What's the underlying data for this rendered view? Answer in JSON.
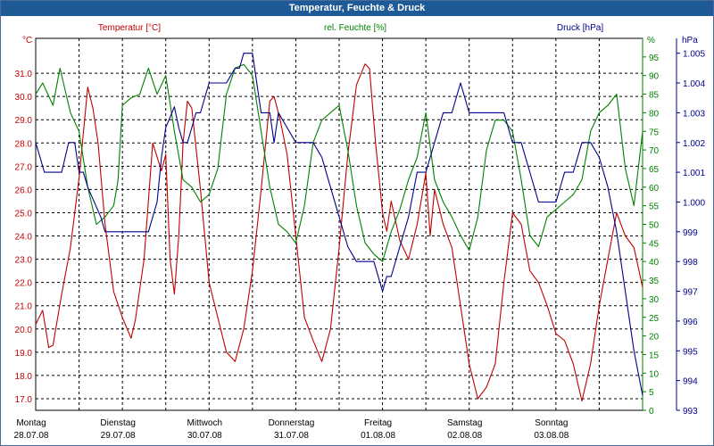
{
  "window": {
    "title": "Temperatur, Feuchte & Druck"
  },
  "colors": {
    "temperature": "#c00000",
    "humidity": "#008000",
    "pressure": "#00008b",
    "grid": "#000000",
    "title_bar": "#1e5a96"
  },
  "chart_data": {
    "type": "line",
    "title": "Temperatur, Feuchte & Druck",
    "legend": {
      "temperature": "Temperatur [°C]",
      "humidity": "rel. Feuchte [%]",
      "pressure": "Druck [hPa]"
    },
    "axes": {
      "left": {
        "unit": "°C",
        "ylim": [
          16.5,
          32.5
        ],
        "ticks": [
          "31.0",
          "30.0",
          "29.0",
          "28.0",
          "27.0",
          "26.0",
          "25.0",
          "24.0",
          "23.0",
          "22.0",
          "21.0",
          "20.0",
          "19.0",
          "18.0",
          "17.0"
        ]
      },
      "right": {
        "unit": "%",
        "ylim": [
          0,
          100
        ],
        "ticks": [
          "95",
          "90",
          "85",
          "80",
          "75",
          "70",
          "65",
          "60",
          "55",
          "50",
          "45",
          "40",
          "35",
          "30",
          "25",
          "20",
          "15",
          "10",
          "5",
          "0"
        ]
      },
      "right2": {
        "unit": "hPa",
        "ylim": [
          993,
          1005.5
        ],
        "ticks": [
          "1.005",
          "1.004",
          "1.003",
          "1.002",
          "1.001",
          "1.000",
          "999",
          "998",
          "997",
          "996",
          "995",
          "994",
          "993"
        ]
      }
    },
    "days": [
      {
        "name": "Montag",
        "date": "28.07.08"
      },
      {
        "name": "Dienstag",
        "date": "29.07.08"
      },
      {
        "name": "Mittwoch",
        "date": "30.07.08"
      },
      {
        "name": "Donnerstag",
        "date": "31.07.08"
      },
      {
        "name": "Freitag",
        "date": "01.08.08"
      },
      {
        "name": "Samstag",
        "date": "02.08.08"
      },
      {
        "name": "Sonntag",
        "date": "03.08.08"
      }
    ],
    "x_range": [
      0,
      7
    ],
    "series": [
      {
        "name": "Temperatur [°C]",
        "axis": "left",
        "x": [
          0,
          0.08,
          0.15,
          0.2,
          0.3,
          0.4,
          0.5,
          0.6,
          0.66,
          0.72,
          0.8,
          0.9,
          1.0,
          1.1,
          1.15,
          1.25,
          1.35,
          1.45,
          1.5,
          1.55,
          1.6,
          1.65,
          1.7,
          1.75,
          1.8,
          1.9,
          2.0,
          2.1,
          2.2,
          2.3,
          2.4,
          2.5,
          2.6,
          2.7,
          2.75,
          2.82,
          2.9,
          3.0,
          3.1,
          3.2,
          3.3,
          3.4,
          3.5,
          3.6,
          3.7,
          3.8,
          3.85,
          3.92,
          4.0,
          4.05,
          4.1,
          4.2,
          4.3,
          4.4,
          4.5,
          4.55,
          4.6,
          4.7,
          4.8,
          4.9,
          5.0,
          5.1,
          5.2,
          5.3,
          5.4,
          5.5,
          5.6,
          5.7,
          5.8,
          5.9,
          6.0,
          6.1,
          6.2,
          6.3,
          6.4,
          6.5,
          6.6,
          6.7,
          6.8,
          6.9,
          7.0
        ],
        "values": [
          20.2,
          20.8,
          19.2,
          19.3,
          21.5,
          23.5,
          26.5,
          30.4,
          29.5,
          28.0,
          24.5,
          21.6,
          20.5,
          19.6,
          20.4,
          23.0,
          28.0,
          26.8,
          27.5,
          23.0,
          21.5,
          24.0,
          28.0,
          29.8,
          29.5,
          26.0,
          22.0,
          20.5,
          19.0,
          18.6,
          20.0,
          22.5,
          26.0,
          29.8,
          30.0,
          29.0,
          27.5,
          24.0,
          20.5,
          19.5,
          18.6,
          20.0,
          23.5,
          27.5,
          30.5,
          31.4,
          31.2,
          28.0,
          25.0,
          24.2,
          25.5,
          23.8,
          23.0,
          24.5,
          26.7,
          24.0,
          26.0,
          24.5,
          23.5,
          21.0,
          18.5,
          17.0,
          17.5,
          18.5,
          22.0,
          25.0,
          24.5,
          22.5,
          22.0,
          21.0,
          19.8,
          19.5,
          18.5,
          16.9,
          18.5,
          21.0,
          23.0,
          25.0,
          24.0,
          23.5,
          21.8
        ]
      },
      {
        "name": "rel. Feuchte [%]",
        "axis": "right",
        "x": [
          0,
          0.08,
          0.2,
          0.28,
          0.4,
          0.5,
          0.6,
          0.7,
          0.8,
          0.9,
          0.95,
          1.0,
          1.1,
          1.2,
          1.3,
          1.4,
          1.5,
          1.6,
          1.7,
          1.8,
          1.9,
          2.0,
          2.1,
          2.2,
          2.3,
          2.4,
          2.5,
          2.6,
          2.7,
          2.8,
          2.9,
          3.0,
          3.1,
          3.2,
          3.3,
          3.4,
          3.5,
          3.6,
          3.7,
          3.8,
          3.9,
          4.0,
          4.1,
          4.2,
          4.3,
          4.4,
          4.5,
          4.6,
          4.7,
          4.8,
          4.9,
          5.0,
          5.1,
          5.2,
          5.3,
          5.4,
          5.5,
          5.6,
          5.7,
          5.8,
          5.9,
          6.0,
          6.1,
          6.2,
          6.3,
          6.4,
          6.5,
          6.6,
          6.7,
          6.8,
          6.9,
          7.0
        ],
        "values": [
          85,
          88,
          82,
          92,
          80,
          75,
          60,
          50,
          52,
          55,
          62,
          82,
          84,
          85,
          92,
          85,
          90,
          75,
          62,
          60,
          56,
          58,
          65,
          85,
          92,
          93,
          90,
          75,
          60,
          50,
          48,
          45,
          55,
          72,
          78,
          80,
          82,
          70,
          55,
          45,
          42,
          40,
          48,
          54,
          62,
          68,
          80,
          62,
          56,
          52,
          47,
          43,
          52,
          70,
          78,
          78,
          75,
          62,
          47,
          44,
          52,
          54,
          56,
          58,
          62,
          75,
          80,
          82,
          85,
          65,
          55,
          75
        ]
      },
      {
        "name": "Druck [hPa]",
        "axis": "right2",
        "x": [
          0,
          0.05,
          0.1,
          0.15,
          0.3,
          0.38,
          0.45,
          0.5,
          0.55,
          0.6,
          0.75,
          0.8,
          0.95,
          1.0,
          1.1,
          1.2,
          1.3,
          1.4,
          1.45,
          1.5,
          1.6,
          1.65,
          1.7,
          1.75,
          1.8,
          1.85,
          1.9,
          2.0,
          2.05,
          2.1,
          2.2,
          2.3,
          2.35,
          2.4,
          2.5,
          2.55,
          2.6,
          2.7,
          2.75,
          2.8,
          2.9,
          3.0,
          3.1,
          3.2,
          3.3,
          3.4,
          3.5,
          3.6,
          3.7,
          3.8,
          3.9,
          4.0,
          4.05,
          4.1,
          4.2,
          4.3,
          4.4,
          4.5,
          4.6,
          4.7,
          4.8,
          4.9,
          5.0,
          5.05,
          5.1,
          5.2,
          5.3,
          5.4,
          5.5,
          5.6,
          5.7,
          5.8,
          5.9,
          6.0,
          6.1,
          6.2,
          6.3,
          6.4,
          6.5,
          6.6,
          6.7,
          6.8,
          6.9,
          7.0
        ],
        "values": [
          1002.0,
          1001.5,
          1001.0,
          1001.0,
          1001.0,
          1002.0,
          1002.0,
          1001.0,
          1001.0,
          1000.5,
          999.5,
          999.0,
          999.0,
          999.0,
          999.0,
          999.0,
          999.0,
          1000.0,
          1001.5,
          1002.5,
          1003.2,
          1002.5,
          1002.0,
          1002.0,
          1002.5,
          1003.0,
          1003.0,
          1004.0,
          1004.0,
          1004.0,
          1004.0,
          1004.5,
          1004.5,
          1005.0,
          1005.0,
          1004.0,
          1003.0,
          1003.0,
          1002.0,
          1003.0,
          1002.5,
          1002.0,
          1002.0,
          1002.0,
          1001.5,
          1000.5,
          999.5,
          998.5,
          998.0,
          998.0,
          998.0,
          997.0,
          997.5,
          997.5,
          998.5,
          999.5,
          1001.0,
          1001.0,
          1002.0,
          1003.0,
          1003.0,
          1004.0,
          1003.0,
          1003.0,
          1003.0,
          1003.0,
          1003.0,
          1003.0,
          1002.0,
          1002.0,
          1001.0,
          1000.0,
          1000.0,
          1000.0,
          1001.0,
          1001.0,
          1002.0,
          1002.0,
          1001.5,
          1000.5,
          999.0,
          997.0,
          995.0,
          993.5
        ]
      }
    ]
  }
}
